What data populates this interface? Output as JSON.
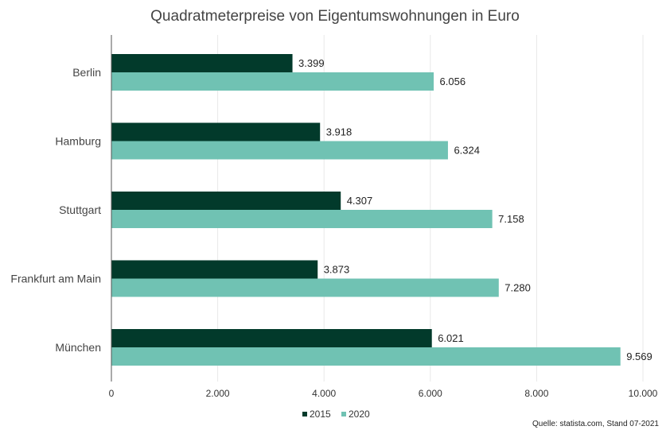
{
  "chart_data": {
    "type": "bar",
    "orientation": "horizontal",
    "title": "Quadratmeterpreise von Eigentumswohnungen in Euro",
    "categories": [
      "Berlin",
      "Hamburg",
      "Stuttgart",
      "Frankfurt am Main",
      "München"
    ],
    "series": [
      {
        "name": "2015",
        "color": "#023a2b",
        "values": [
          3399,
          3918,
          4307,
          3873,
          6021
        ],
        "labels": [
          "3.399",
          "3.918",
          "4.307",
          "3.873",
          "6.021"
        ]
      },
      {
        "name": "2020",
        "color": "#70c2b3",
        "values": [
          6056,
          6324,
          7158,
          7280,
          9569
        ],
        "labels": [
          "6.056",
          "6.324",
          "7.158",
          "7.280",
          "9.569"
        ]
      }
    ],
    "xlim": [
      0,
      10000
    ],
    "xticks": [
      0,
      2000,
      4000,
      6000,
      8000,
      10000
    ],
    "xtick_labels": [
      "0",
      "2.000",
      "4.000",
      "6.000",
      "8.000",
      "10.000"
    ],
    "grid": true,
    "legend_position": "bottom-center"
  },
  "source": "Quelle: statista.com, Stand 07-2021"
}
